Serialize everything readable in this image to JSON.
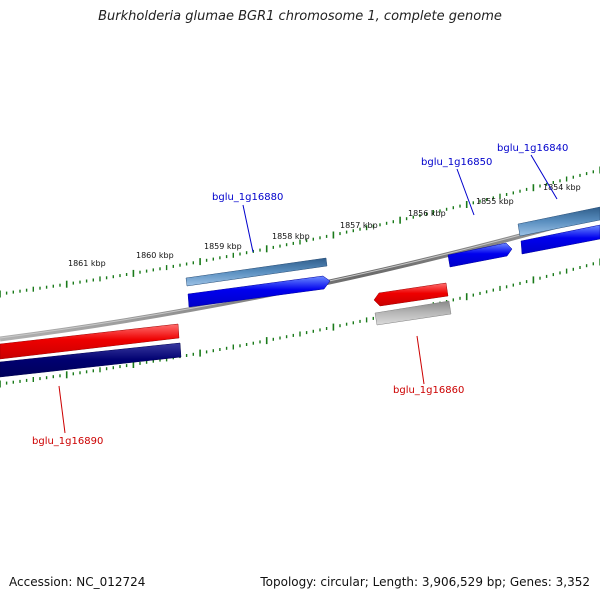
{
  "title": "Burkholderia glumae BGR1 chromosome 1, complete genome",
  "footer": {
    "accession": "Accession: NC_012724",
    "summary": "Topology: circular; Length: 3,906,529 bp; Genes: 3,352"
  },
  "scale_labels": [
    "1861 kbp",
    "1860 kbp",
    "1859 kbp",
    "1858 kbp",
    "1857 kbp",
    "1856 kbp",
    "1855 kbp",
    "1854 kbp"
  ],
  "genes": [
    {
      "id": "bglu_1g16840",
      "color": "#0000cc"
    },
    {
      "id": "bglu_1g16850",
      "color": "#0000cc"
    },
    {
      "id": "bglu_1g16860",
      "color": "#cc0000"
    },
    {
      "id": "bglu_1g16880",
      "color": "#0000cc"
    },
    {
      "id": "bglu_1g16890",
      "color": "#cc0000"
    }
  ],
  "colors": {
    "forward": "#0000ee",
    "reverse": "#ee0000",
    "forward_dark": "#000080",
    "steelblue": "#4a7fb0",
    "grey_block": "#b0b0b0",
    "backbone": "#808080",
    "ticks": "#1a7a1a"
  }
}
